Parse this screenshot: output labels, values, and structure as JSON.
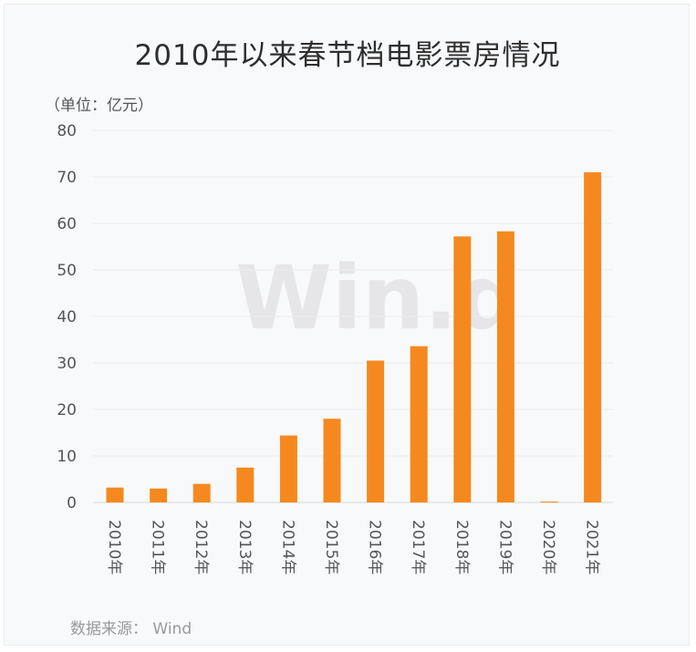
{
  "title": "2010年以来春节档电影票房情况",
  "unit_label": "（单位：亿元）",
  "source_label": "数据来源：  Wind",
  "watermark": "Win.d",
  "colors": {
    "bar": "#f5891f",
    "grid": "#ececec",
    "axis": "#d9d9d9"
  },
  "chart_data": {
    "type": "bar",
    "categories": [
      "2010年",
      "2011年",
      "2012年",
      "2013年",
      "2014年",
      "2015年",
      "2016年",
      "2017年",
      "2018年",
      "2019年",
      "2020年",
      "2021年"
    ],
    "values": [
      3.2,
      3.0,
      4.0,
      7.5,
      14.4,
      18.0,
      30.5,
      33.6,
      57.2,
      58.3,
      0.2,
      71.0
    ],
    "ylim": [
      0,
      80
    ],
    "yticks": [
      0,
      10,
      20,
      30,
      40,
      50,
      60,
      70,
      80
    ],
    "xlabel": "",
    "ylabel": "",
    "grid": true,
    "legend": "none"
  }
}
